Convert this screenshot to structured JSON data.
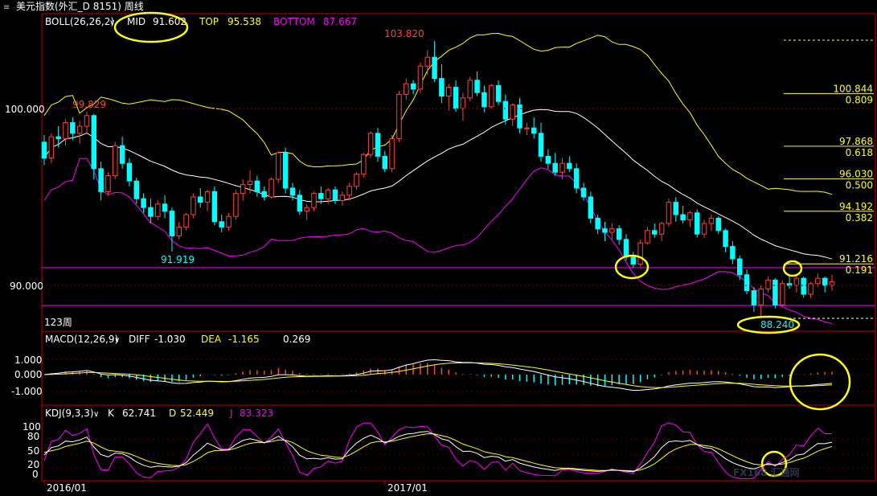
{
  "header": {
    "title": "美元指数(外汇_D 8151) 周线"
  },
  "colors": {
    "up": "#ff4040",
    "down": "#00ffff",
    "mid": "#ffffff",
    "top": "#ffff00",
    "bottom": "#ff00ff",
    "fib_line": "#ffff00",
    "hline": "#ff00ff",
    "grid": "#800000",
    "axis": "#c00000",
    "annotation": "#ffff00"
  },
  "boll": {
    "label": "BOLL(26,26,2)",
    "mid_label": "MID",
    "mid_value": "91.602",
    "top_label": "TOP",
    "top_value": "95.538",
    "bottom_label": "BOTTOM",
    "bottom_value": "87.667"
  },
  "price_axis": [
    "100.000",
    "90.000"
  ],
  "annotations": {
    "high": "103.820",
    "left_high": "99.829",
    "low": "91.919",
    "recent_low": "88.240",
    "weeks": "123周"
  },
  "fib_levels": [
    {
      "price": "100.844",
      "ratio": "0.809"
    },
    {
      "price": "97.868",
      "ratio": "0.618"
    },
    {
      "price": "96.030",
      "ratio": "0.500"
    },
    {
      "price": "94.192",
      "ratio": "0.382"
    },
    {
      "price": "91.216",
      "ratio": "0.191"
    }
  ],
  "macd": {
    "label": "MACD(12,26,9)",
    "diff_label": "DIFF",
    "diff_value": "-1.030",
    "dea_label": "DEA",
    "dea_value": "-1.165",
    "macd_value": "0.269",
    "axis": [
      "1.000",
      "0.000",
      "-1.000"
    ]
  },
  "kdj": {
    "label": "KDJ(9,3,3)",
    "k_label": "K",
    "k_value": "62.741",
    "d_label": "D",
    "d_value": "52.449",
    "j_label": "J",
    "j_value": "83.323",
    "axis": [
      "100",
      "80",
      "50",
      "20",
      "0"
    ]
  },
  "time_axis": [
    "2016/01",
    "2017/01"
  ],
  "watermark": "FX168 汇通网",
  "chart_data": {
    "type": "candlestick",
    "period": "weekly",
    "ylim": [
      87.5,
      106.0
    ],
    "candles": [
      [
        98.1,
        98.5,
        96.8,
        97.2
      ],
      [
        97.2,
        98.6,
        96.9,
        98.4
      ],
      [
        98.4,
        99.0,
        97.8,
        98.3
      ],
      [
        98.3,
        99.4,
        97.9,
        99.2
      ],
      [
        99.2,
        99.5,
        98.2,
        98.6
      ],
      [
        98.6,
        99.3,
        98.0,
        99.0
      ],
      [
        99.0,
        99.829,
        98.6,
        99.6
      ],
      [
        99.6,
        99.7,
        96.0,
        96.6
      ],
      [
        96.6,
        97.0,
        94.8,
        95.3
      ],
      [
        95.3,
        96.4,
        95.1,
        96.2
      ],
      [
        96.2,
        98.1,
        96.0,
        97.9
      ],
      [
        97.9,
        98.4,
        96.6,
        96.9
      ],
      [
        96.9,
        97.2,
        95.6,
        95.9
      ],
      [
        95.9,
        96.1,
        94.6,
        94.9
      ],
      [
        94.9,
        95.2,
        94.1,
        94.4
      ],
      [
        94.4,
        94.9,
        93.5,
        93.9
      ],
      [
        93.9,
        94.8,
        93.7,
        94.6
      ],
      [
        94.6,
        95.1,
        93.8,
        94.2
      ],
      [
        94.2,
        94.4,
        91.919,
        92.8
      ],
      [
        92.8,
        93.6,
        92.6,
        93.3
      ],
      [
        93.3,
        94.1,
        93.1,
        94.0
      ],
      [
        94.0,
        95.2,
        93.8,
        95.0
      ],
      [
        95.0,
        95.5,
        94.4,
        94.7
      ],
      [
        94.7,
        95.4,
        94.2,
        95.3
      ],
      [
        95.3,
        95.6,
        93.4,
        93.6
      ],
      [
        93.6,
        94.0,
        93.0,
        93.3
      ],
      [
        93.3,
        94.1,
        93.1,
        93.9
      ],
      [
        93.9,
        95.4,
        93.7,
        95.2
      ],
      [
        95.2,
        96.0,
        94.8,
        95.7
      ],
      [
        95.7,
        96.5,
        95.2,
        95.9
      ],
      [
        95.9,
        96.2,
        95.0,
        95.3
      ],
      [
        95.3,
        95.6,
        94.8,
        95.0
      ],
      [
        95.0,
        96.1,
        94.9,
        96.0
      ],
      [
        96.0,
        97.6,
        95.8,
        97.5
      ],
      [
        97.5,
        97.8,
        95.2,
        95.5
      ],
      [
        95.5,
        95.8,
        94.8,
        95.1
      ],
      [
        95.1,
        95.4,
        94.0,
        94.2
      ],
      [
        94.2,
        94.6,
        93.7,
        94.4
      ],
      [
        94.4,
        95.3,
        94.2,
        95.2
      ],
      [
        95.2,
        95.6,
        94.6,
        94.9
      ],
      [
        94.9,
        95.5,
        94.6,
        95.4
      ],
      [
        95.4,
        95.6,
        94.6,
        94.8
      ],
      [
        94.8,
        95.3,
        94.5,
        95.1
      ],
      [
        95.1,
        95.8,
        94.8,
        95.6
      ],
      [
        95.6,
        96.4,
        95.4,
        96.3
      ],
      [
        96.3,
        97.5,
        96.1,
        97.4
      ],
      [
        97.4,
        98.7,
        97.2,
        98.6
      ],
      [
        98.6,
        98.9,
        97.0,
        97.3
      ],
      [
        97.3,
        97.6,
        96.4,
        96.6
      ],
      [
        96.6,
        98.5,
        96.4,
        98.3
      ],
      [
        98.3,
        101.0,
        98.1,
        100.8
      ],
      [
        100.8,
        101.7,
        100.5,
        101.4
      ],
      [
        101.4,
        101.6,
        100.8,
        101.1
      ],
      [
        101.1,
        102.6,
        100.9,
        102.4
      ],
      [
        102.4,
        103.3,
        101.9,
        102.9
      ],
      [
        102.9,
        103.82,
        101.5,
        101.7
      ],
      [
        101.7,
        102.5,
        100.3,
        100.7
      ],
      [
        100.7,
        101.4,
        99.9,
        101.2
      ],
      [
        101.2,
        101.6,
        99.8,
        100.0
      ],
      [
        100.0,
        100.9,
        99.3,
        100.6
      ],
      [
        100.6,
        101.8,
        100.4,
        101.6
      ],
      [
        101.6,
        102.1,
        100.7,
        100.9
      ],
      [
        100.9,
        101.3,
        99.8,
        100.1
      ],
      [
        100.1,
        101.4,
        100.0,
        101.3
      ],
      [
        101.3,
        101.6,
        100.2,
        100.4
      ],
      [
        100.4,
        100.8,
        99.1,
        99.4
      ],
      [
        99.4,
        100.3,
        99.0,
        100.2
      ],
      [
        100.2,
        100.6,
        98.6,
        98.9
      ],
      [
        98.9,
        99.2,
        98.5,
        98.9
      ],
      [
        98.9,
        99.5,
        98.3,
        98.6
      ],
      [
        98.6,
        99.2,
        97.0,
        97.3
      ],
      [
        97.3,
        97.7,
        96.6,
        96.9
      ],
      [
        96.9,
        97.5,
        96.2,
        96.4
      ],
      [
        96.4,
        97.2,
        96.0,
        96.9
      ],
      [
        96.9,
        97.3,
        96.4,
        96.6
      ],
      [
        96.6,
        96.9,
        95.2,
        95.5
      ],
      [
        95.5,
        95.8,
        94.8,
        95.0
      ],
      [
        95.0,
        95.3,
        93.5,
        93.8
      ],
      [
        93.8,
        94.0,
        92.9,
        93.2
      ],
      [
        93.2,
        93.6,
        92.5,
        93.0
      ],
      [
        93.0,
        93.5,
        92.6,
        93.2
      ],
      [
        93.2,
        93.4,
        92.3,
        92.6
      ],
      [
        92.6,
        92.9,
        91.4,
        91.6
      ],
      [
        91.6,
        91.9,
        91.0,
        91.2
      ],
      [
        91.2,
        92.6,
        91.1,
        92.4
      ],
      [
        92.4,
        93.3,
        92.3,
        93.1
      ],
      [
        93.1,
        93.5,
        92.7,
        92.9
      ],
      [
        92.9,
        93.6,
        92.5,
        93.5
      ],
      [
        93.5,
        94.9,
        93.3,
        94.7
      ],
      [
        94.7,
        95.0,
        93.6,
        94.0
      ],
      [
        94.0,
        94.5,
        93.5,
        93.7
      ],
      [
        93.7,
        94.2,
        93.3,
        94.1
      ],
      [
        94.1,
        94.3,
        92.7,
        92.9
      ],
      [
        92.9,
        93.7,
        92.7,
        93.5
      ],
      [
        93.5,
        94.0,
        93.1,
        93.8
      ],
      [
        93.8,
        93.9,
        92.9,
        93.1
      ],
      [
        93.1,
        93.2,
        91.9,
        92.2
      ],
      [
        92.2,
        92.5,
        91.2,
        91.5
      ],
      [
        91.5,
        91.7,
        90.3,
        90.6
      ],
      [
        90.6,
        90.9,
        89.5,
        89.7
      ],
      [
        89.7,
        89.9,
        88.5,
        88.9
      ],
      [
        88.9,
        90.0,
        88.24,
        89.8
      ],
      [
        89.8,
        90.5,
        89.6,
        90.3
      ],
      [
        90.3,
        90.4,
        88.7,
        88.9
      ],
      [
        88.9,
        90.3,
        88.8,
        90.1
      ],
      [
        90.1,
        90.6,
        89.8,
        90.0
      ],
      [
        90.0,
        90.6,
        89.6,
        90.4
      ],
      [
        90.4,
        90.5,
        89.3,
        89.5
      ],
      [
        89.5,
        90.2,
        89.3,
        90.1
      ],
      [
        90.1,
        90.7,
        89.9,
        90.4
      ],
      [
        90.4,
        90.5,
        89.6,
        90.0
      ],
      [
        90.0,
        90.6,
        89.7,
        90.2
      ]
    ]
  }
}
